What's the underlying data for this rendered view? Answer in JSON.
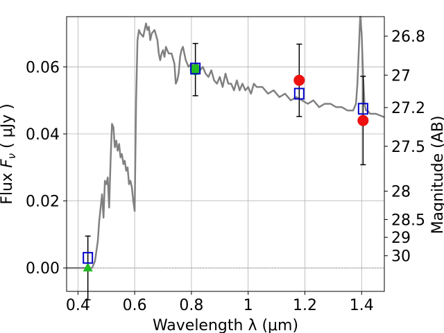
{
  "chart_data": {
    "type": "scatter",
    "xlabel": "Wavelength  λ (μm)",
    "ylabel": "Flux  F_ν  ( μJy )",
    "ylabel_right": "Magnitude (AB)",
    "xlim": [
      0.36,
      1.48
    ],
    "ylim": [
      -0.007,
      0.075
    ],
    "grid": true,
    "x_ticks": [
      0.4,
      0.6,
      0.8,
      1.0,
      1.2,
      1.4
    ],
    "x_tick_labels": [
      "0.4",
      "0.6",
      "0.8",
      "1",
      "1.2",
      "1.4"
    ],
    "y_ticks": [
      0.0,
      0.02,
      0.04,
      0.06
    ],
    "y_tick_labels": [
      "0.00",
      "0.02",
      "0.04",
      "0.06"
    ],
    "right_ticks": [
      {
        "mag": 26.8,
        "label": "26.8"
      },
      {
        "mag": 27.0,
        "label": "27"
      },
      {
        "mag": 27.2,
        "label": "27.2"
      },
      {
        "mag": 27.5,
        "label": "27.5"
      },
      {
        "mag": 28.0,
        "label": "28"
      },
      {
        "mag": 28.5,
        "label": "28.5"
      },
      {
        "mag": 29.0,
        "label": "29"
      },
      {
        "mag": 30.0,
        "label": "30"
      }
    ],
    "model_spectrum": {
      "color": "#808080",
      "x": [
        0.36,
        0.43,
        0.44,
        0.45,
        0.46,
        0.47,
        0.475,
        0.48,
        0.485,
        0.49,
        0.495,
        0.5,
        0.505,
        0.51,
        0.515,
        0.52,
        0.525,
        0.53,
        0.535,
        0.54,
        0.545,
        0.55,
        0.555,
        0.56,
        0.565,
        0.57,
        0.575,
        0.58,
        0.585,
        0.59,
        0.595,
        0.6,
        0.605,
        0.61,
        0.615,
        0.62,
        0.63,
        0.64,
        0.645,
        0.65,
        0.655,
        0.66,
        0.67,
        0.68,
        0.685,
        0.69,
        0.695,
        0.7,
        0.705,
        0.71,
        0.72,
        0.73,
        0.74,
        0.745,
        0.75,
        0.755,
        0.76,
        0.765,
        0.77,
        0.775,
        0.78,
        0.79,
        0.8,
        0.81,
        0.82,
        0.83,
        0.84,
        0.85,
        0.86,
        0.87,
        0.88,
        0.89,
        0.9,
        0.91,
        0.92,
        0.93,
        0.94,
        0.95,
        0.96,
        0.97,
        0.98,
        0.99,
        1.0,
        1.01,
        1.02,
        1.03,
        1.05,
        1.07,
        1.09,
        1.11,
        1.13,
        1.15,
        1.17,
        1.19,
        1.21,
        1.23,
        1.25,
        1.27,
        1.29,
        1.31,
        1.33,
        1.35,
        1.37,
        1.38,
        1.385,
        1.39,
        1.395,
        1.4,
        1.405,
        1.41,
        1.415,
        1.42,
        1.43,
        1.45,
        1.48
      ],
      "y": [
        0.0,
        0.0,
        0.0,
        0.0,
        0.002,
        0.008,
        0.014,
        0.018,
        0.022,
        0.015,
        0.026,
        0.025,
        0.027,
        0.018,
        0.032,
        0.043,
        0.042,
        0.036,
        0.038,
        0.035,
        0.037,
        0.033,
        0.034,
        0.031,
        0.032,
        0.029,
        0.03,
        0.025,
        0.026,
        0.024,
        0.02,
        0.017,
        0.05,
        0.068,
        0.071,
        0.07,
        0.069,
        0.073,
        0.071,
        0.072,
        0.068,
        0.07,
        0.071,
        0.068,
        0.064,
        0.062,
        0.064,
        0.065,
        0.063,
        0.066,
        0.064,
        0.064,
        0.061,
        0.055,
        0.056,
        0.058,
        0.063,
        0.065,
        0.066,
        0.064,
        0.062,
        0.06,
        0.061,
        0.059,
        0.061,
        0.059,
        0.06,
        0.058,
        0.057,
        0.059,
        0.056,
        0.055,
        0.057,
        0.054,
        0.058,
        0.055,
        0.055,
        0.053,
        0.056,
        0.053,
        0.055,
        0.053,
        0.054,
        0.052,
        0.055,
        0.054,
        0.054,
        0.052,
        0.053,
        0.051,
        0.052,
        0.05,
        0.051,
        0.05,
        0.049,
        0.05,
        0.048,
        0.049,
        0.049,
        0.048,
        0.048,
        0.047,
        0.047,
        0.049,
        0.055,
        0.065,
        0.075,
        0.07,
        0.058,
        0.049,
        0.047,
        0.047,
        0.046,
        0.046,
        0.045
      ]
    },
    "model_photometry": {
      "marker": "open-square",
      "color": "#0000cc",
      "points": [
        {
          "x": 0.435,
          "y": 0.003
        },
        {
          "x": 0.814,
          "y": 0.0595
        },
        {
          "x": 1.18,
          "y": 0.052
        },
        {
          "x": 1.405,
          "y": 0.0475
        }
      ]
    },
    "observed_photometry": [
      {
        "x": 0.435,
        "y": 0.0,
        "err": 0.0095,
        "marker": "triangle",
        "color": "#22bb22"
      },
      {
        "x": 0.814,
        "y": 0.0592,
        "err": 0.0078,
        "marker": "circle",
        "color": "#22bb22"
      },
      {
        "x": 1.18,
        "y": 0.056,
        "err": 0.0108,
        "marker": "circle",
        "color": "#ee1111"
      },
      {
        "x": 1.405,
        "y": 0.044,
        "err": 0.0132,
        "marker": "circle",
        "color": "#ee1111"
      }
    ]
  }
}
